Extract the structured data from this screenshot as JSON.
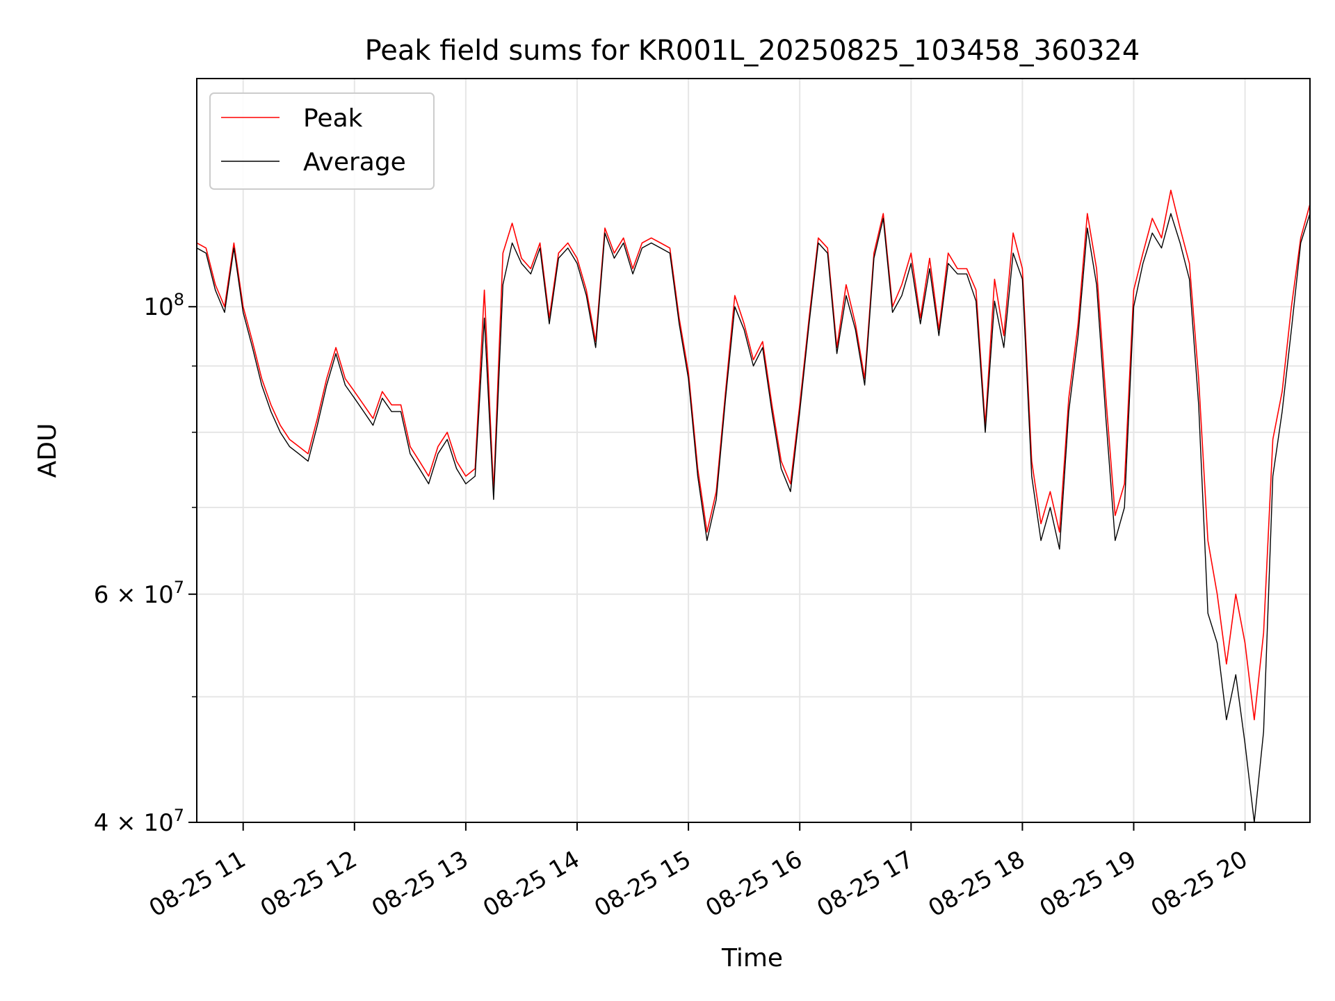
{
  "chart_data": {
    "type": "line",
    "title": "Peak field sums for KR001L_20250825_103458_360324",
    "xlabel": "Time",
    "ylabel": "ADU",
    "yscale": "log",
    "xlim": [
      "2025-08-25 10:35",
      "2025-08-25 20:35"
    ],
    "ylim": [
      40000000,
      150000000
    ],
    "grid": true,
    "legend_position": "upper left",
    "x_tick_labels": [
      "08-25 11",
      "08-25 12",
      "08-25 13",
      "08-25 14",
      "08-25 15",
      "08-25 16",
      "08-25 17",
      "08-25 18",
      "08-25 19",
      "08-25 20"
    ],
    "y_tick_labels": [
      {
        "value": 100000000,
        "base": "10",
        "exp": "8"
      },
      {
        "value": 60000000,
        "base": "6 × 10",
        "exp": "7"
      },
      {
        "value": 40000000,
        "base": "4 × 10",
        "exp": "7"
      }
    ],
    "x_dates": [
      "2025-08-25 10:35",
      "2025-08-25 10:40",
      "2025-08-25 10:45",
      "2025-08-25 10:50",
      "2025-08-25 10:55",
      "2025-08-25 11:00",
      "2025-08-25 11:05",
      "2025-08-25 11:10",
      "2025-08-25 11:15",
      "2025-08-25 11:20",
      "2025-08-25 11:25",
      "2025-08-25 11:30",
      "2025-08-25 11:35",
      "2025-08-25 11:40",
      "2025-08-25 11:45",
      "2025-08-25 11:50",
      "2025-08-25 11:55",
      "2025-08-25 12:00",
      "2025-08-25 12:05",
      "2025-08-25 12:10",
      "2025-08-25 12:15",
      "2025-08-25 12:20",
      "2025-08-25 12:25",
      "2025-08-25 12:30",
      "2025-08-25 12:35",
      "2025-08-25 12:40",
      "2025-08-25 12:45",
      "2025-08-25 12:50",
      "2025-08-25 12:55",
      "2025-08-25 13:00",
      "2025-08-25 13:05",
      "2025-08-25 13:10",
      "2025-08-25 13:15",
      "2025-08-25 13:20",
      "2025-08-25 13:25",
      "2025-08-25 13:30",
      "2025-08-25 13:35",
      "2025-08-25 13:40",
      "2025-08-25 13:45",
      "2025-08-25 13:50",
      "2025-08-25 13:55",
      "2025-08-25 14:00",
      "2025-08-25 14:05",
      "2025-08-25 14:10",
      "2025-08-25 14:15",
      "2025-08-25 14:20",
      "2025-08-25 14:25",
      "2025-08-25 14:30",
      "2025-08-25 14:35",
      "2025-08-25 14:40",
      "2025-08-25 14:45",
      "2025-08-25 14:50",
      "2025-08-25 14:55",
      "2025-08-25 15:00",
      "2025-08-25 15:05",
      "2025-08-25 15:10",
      "2025-08-25 15:15",
      "2025-08-25 15:20",
      "2025-08-25 15:25",
      "2025-08-25 15:30",
      "2025-08-25 15:35",
      "2025-08-25 15:40",
      "2025-08-25 15:45",
      "2025-08-25 15:50",
      "2025-08-25 15:55",
      "2025-08-25 16:00",
      "2025-08-25 16:05",
      "2025-08-25 16:10",
      "2025-08-25 16:15",
      "2025-08-25 16:20",
      "2025-08-25 16:25",
      "2025-08-25 16:30",
      "2025-08-25 16:35",
      "2025-08-25 16:40",
      "2025-08-25 16:45",
      "2025-08-25 16:50",
      "2025-08-25 16:55",
      "2025-08-25 17:00",
      "2025-08-25 17:05",
      "2025-08-25 17:10",
      "2025-08-25 17:15",
      "2025-08-25 17:20",
      "2025-08-25 17:25",
      "2025-08-25 17:30",
      "2025-08-25 17:35",
      "2025-08-25 17:40",
      "2025-08-25 17:45",
      "2025-08-25 17:50",
      "2025-08-25 17:55",
      "2025-08-25 18:00",
      "2025-08-25 18:05",
      "2025-08-25 18:10",
      "2025-08-25 18:15",
      "2025-08-25 18:20",
      "2025-08-25 18:25",
      "2025-08-25 18:30",
      "2025-08-25 18:35",
      "2025-08-25 18:40",
      "2025-08-25 18:45",
      "2025-08-25 18:50",
      "2025-08-25 18:55",
      "2025-08-25 19:00",
      "2025-08-25 19:05",
      "2025-08-25 19:10",
      "2025-08-25 19:15",
      "2025-08-25 19:20",
      "2025-08-25 19:25",
      "2025-08-25 19:30",
      "2025-08-25 19:35",
      "2025-08-25 19:40",
      "2025-08-25 19:45",
      "2025-08-25 19:50",
      "2025-08-25 19:55",
      "2025-08-25 20:00",
      "2025-08-25 20:05",
      "2025-08-25 20:10",
      "2025-08-25 20:15",
      "2025-08-25 20:20",
      "2025-08-25 20:25",
      "2025-08-25 20:30",
      "2025-08-25 20:35"
    ],
    "series": [
      {
        "name": "Peak",
        "color": "#ff0000",
        "values": [
          112000000,
          111000000,
          104000000,
          100000000,
          112000000,
          100000000,
          94000000,
          88000000,
          84000000,
          81000000,
          79000000,
          78000000,
          77000000,
          82000000,
          88000000,
          93000000,
          88000000,
          86000000,
          84000000,
          82000000,
          86000000,
          84000000,
          84000000,
          78000000,
          76000000,
          74000000,
          78000000,
          80000000,
          76000000,
          74000000,
          75000000,
          103000000,
          72000000,
          110000000,
          116000000,
          109000000,
          107000000,
          112000000,
          98000000,
          110000000,
          112000000,
          109000000,
          103000000,
          94000000,
          115000000,
          110000000,
          113000000,
          107000000,
          112000000,
          113000000,
          112000000,
          111000000,
          98000000,
          89000000,
          75000000,
          67000000,
          72000000,
          86000000,
          102000000,
          97000000,
          91000000,
          94000000,
          84000000,
          76000000,
          73000000,
          84000000,
          98000000,
          113000000,
          111000000,
          93000000,
          104000000,
          97000000,
          88000000,
          110000000,
          118000000,
          100000000,
          104000000,
          110000000,
          98000000,
          109000000,
          96000000,
          110000000,
          107000000,
          107000000,
          103000000,
          81000000,
          105000000,
          95000000,
          114000000,
          107000000,
          76000000,
          68000000,
          72000000,
          67000000,
          85000000,
          97000000,
          118000000,
          107000000,
          85000000,
          69000000,
          73000000,
          103000000,
          110000000,
          117000000,
          113000000,
          123000000,
          115000000,
          108000000,
          88000000,
          66000000,
          60000000,
          53000000,
          60000000,
          55000000,
          48000000,
          56000000,
          79000000,
          86000000,
          100000000,
          113000000,
          120000000
        ]
      },
      {
        "name": "Average",
        "color": "#000000",
        "values": [
          111000000,
          110000000,
          103000000,
          99000000,
          111000000,
          99000000,
          93000000,
          87000000,
          83000000,
          80000000,
          78000000,
          77000000,
          76000000,
          81000000,
          87000000,
          92000000,
          87000000,
          85000000,
          83000000,
          81000000,
          85000000,
          83000000,
          83000000,
          77000000,
          75000000,
          73000000,
          77000000,
          79000000,
          75000000,
          73000000,
          74000000,
          98000000,
          71000000,
          104000000,
          112000000,
          108000000,
          106000000,
          111000000,
          97000000,
          109000000,
          111000000,
          108000000,
          102000000,
          93000000,
          114000000,
          109000000,
          112000000,
          106000000,
          111000000,
          112000000,
          111000000,
          110000000,
          97000000,
          88000000,
          74000000,
          66000000,
          71000000,
          85000000,
          100000000,
          96000000,
          90000000,
          93000000,
          83000000,
          75000000,
          72000000,
          83000000,
          97000000,
          112000000,
          110000000,
          92000000,
          102000000,
          96000000,
          87000000,
          109000000,
          117000000,
          99000000,
          102000000,
          108000000,
          97000000,
          107000000,
          95000000,
          108000000,
          106000000,
          106000000,
          101000000,
          80000000,
          101000000,
          93000000,
          110000000,
          105000000,
          74000000,
          66000000,
          70000000,
          65000000,
          83000000,
          95000000,
          115000000,
          104000000,
          82000000,
          66000000,
          70000000,
          100000000,
          108000000,
          114000000,
          111000000,
          118000000,
          112000000,
          105000000,
          84000000,
          58000000,
          55000000,
          48000000,
          52000000,
          46000000,
          40000000,
          47000000,
          74000000,
          83000000,
          96000000,
          112000000,
          118000000
        ]
      }
    ]
  }
}
